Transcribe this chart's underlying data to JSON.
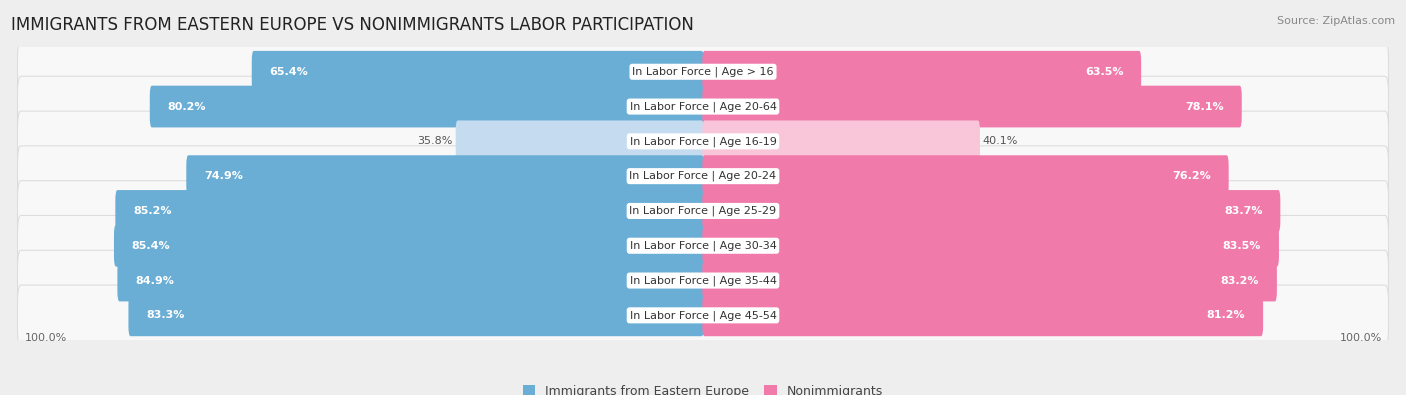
{
  "title": "IMMIGRANTS FROM EASTERN EUROPE VS NONIMMIGRANTS LABOR PARTICIPATION",
  "source": "Source: ZipAtlas.com",
  "categories": [
    "In Labor Force | Age > 16",
    "In Labor Force | Age 20-64",
    "In Labor Force | Age 16-19",
    "In Labor Force | Age 20-24",
    "In Labor Force | Age 25-29",
    "In Labor Force | Age 30-34",
    "In Labor Force | Age 35-44",
    "In Labor Force | Age 45-54"
  ],
  "immigrants": [
    65.4,
    80.2,
    35.8,
    74.9,
    85.2,
    85.4,
    84.9,
    83.3
  ],
  "nonimmigrants": [
    63.5,
    78.1,
    40.1,
    76.2,
    83.7,
    83.5,
    83.2,
    81.2
  ],
  "immigrant_color": "#6aaed6",
  "nonimmigrant_color": "#f07aaa",
  "immigrant_color_light": "#c5dcf0",
  "nonimmigrant_color_light": "#f9c5d8",
  "bg_color": "#eeeeee",
  "row_bg_color": "#f8f8f8",
  "row_border_color": "#dddddd",
  "bar_height": 0.62,
  "max_val": 100.0,
  "title_fontsize": 12,
  "source_fontsize": 8,
  "value_fontsize": 8,
  "category_fontsize": 8,
  "legend_fontsize": 9,
  "axis_label_fontsize": 8
}
